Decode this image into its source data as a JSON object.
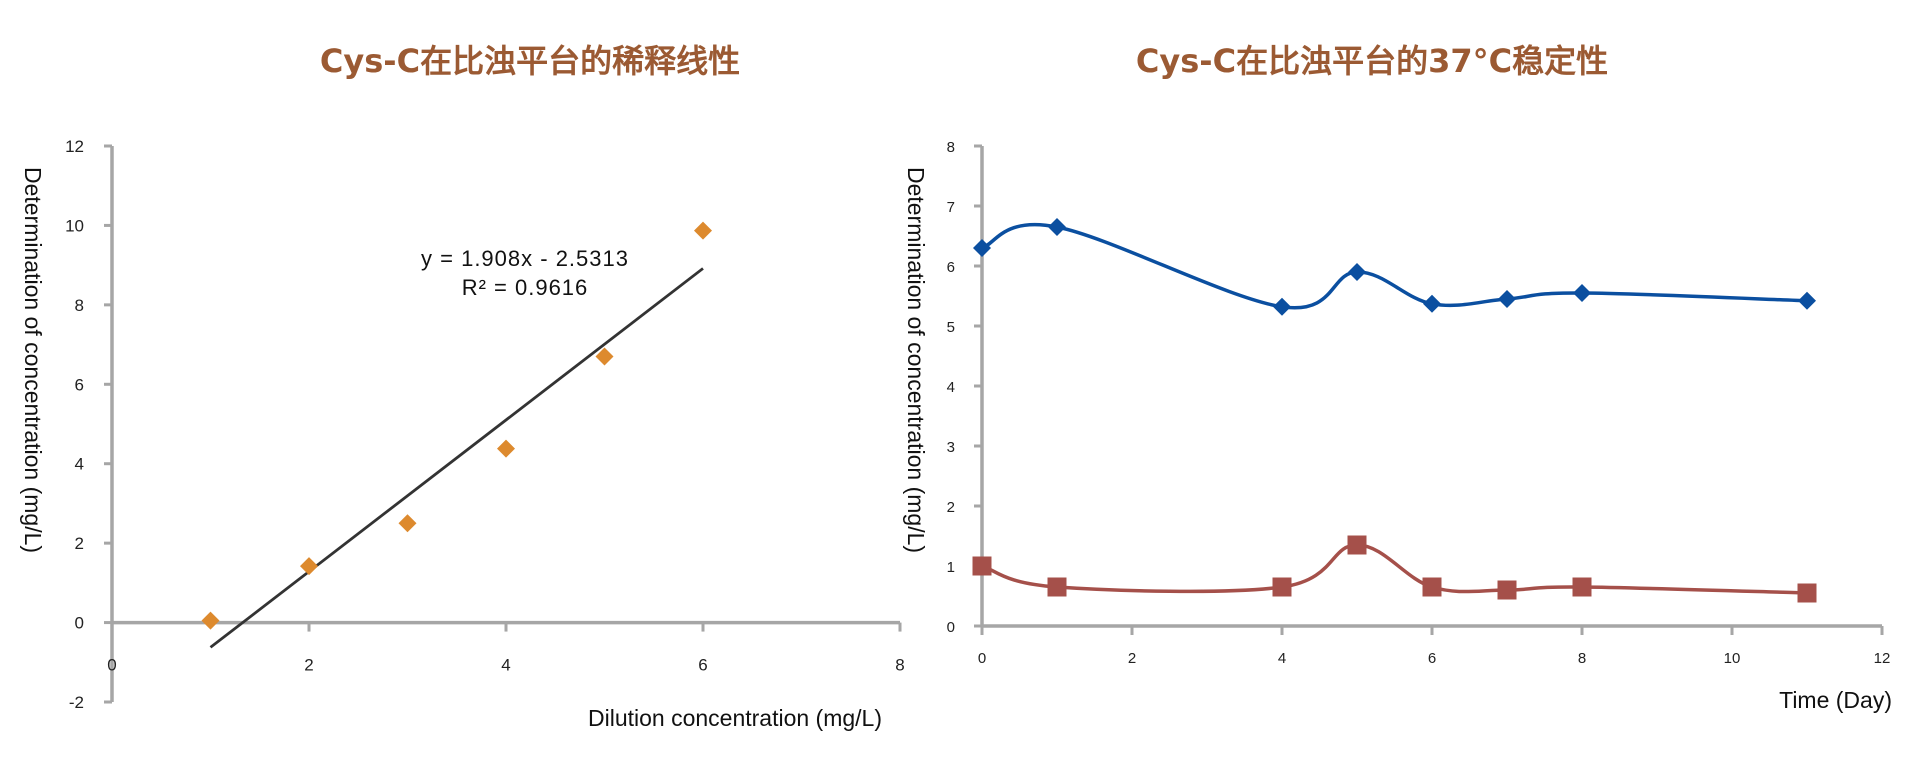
{
  "chart_data": [
    {
      "type": "scatter",
      "title": "Cys-C在比浊平台的稀释线性",
      "xlabel": "Dilution concentration (mg/L)",
      "ylabel": "Determination of concentration (mg/L)",
      "xlim": [
        0,
        8
      ],
      "ylim": [
        -2,
        12
      ],
      "xticks": [
        0,
        2,
        4,
        6,
        8
      ],
      "yticks": [
        -2,
        0,
        2,
        4,
        6,
        8,
        10,
        12
      ],
      "grid": false,
      "colors": {
        "points": "#dd8a2e",
        "trendline": "#333333",
        "axis": "#a6a6a6"
      },
      "series": [
        {
          "x": [
            1,
            2,
            3,
            4,
            5,
            6
          ],
          "y": [
            0.05,
            1.42,
            2.5,
            4.38,
            6.7,
            9.87
          ]
        }
      ],
      "trendline": {
        "slope": 1.908,
        "intercept": -2.5313,
        "x_range": [
          1,
          6
        ],
        "equation": "y = 1.908x - 2.5313",
        "r_squared": "R² = 0.9616"
      }
    },
    {
      "type": "line",
      "title": "Cys-C在比浊平台的37°C稳定性",
      "xlabel": "Time (Day)",
      "ylabel": "Determination of concentration (mg/L)",
      "xlim": [
        0,
        12
      ],
      "ylim": [
        0,
        8
      ],
      "xticks": [
        0,
        2,
        4,
        6,
        8,
        10,
        12
      ],
      "yticks": [
        0,
        1,
        2,
        3,
        4,
        5,
        6,
        7,
        8
      ],
      "grid": false,
      "colors": {
        "axis": "#a6a6a6"
      },
      "series": [
        {
          "marker": "diamond",
          "color": "#0b4fa0",
          "x": [
            0,
            1,
            4,
            5,
            6,
            7,
            8,
            11
          ],
          "y": [
            6.3,
            6.65,
            5.32,
            5.9,
            5.37,
            5.45,
            5.55,
            5.42
          ]
        },
        {
          "marker": "square",
          "color": "#a5504a",
          "x": [
            0,
            1,
            4,
            5,
            6,
            7,
            8,
            11
          ],
          "y": [
            1.0,
            0.65,
            0.65,
            1.35,
            0.65,
            0.6,
            0.65,
            0.55
          ]
        }
      ]
    }
  ]
}
